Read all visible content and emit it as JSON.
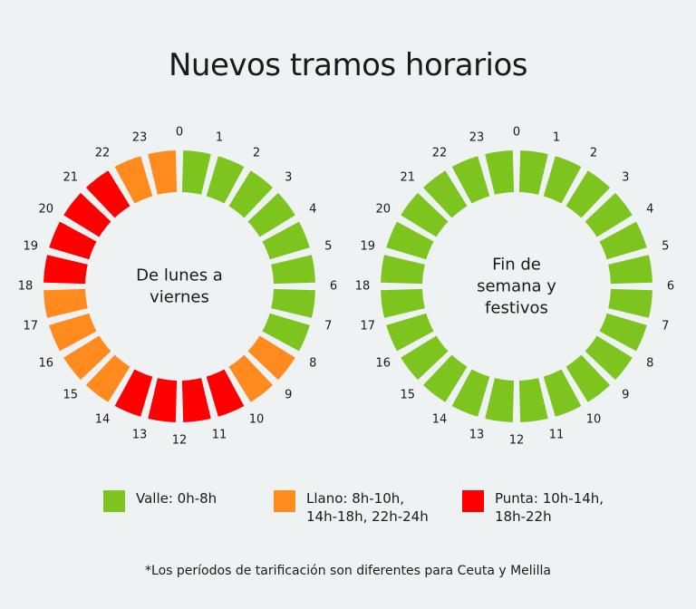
{
  "title": "Nuevos tramos horarios",
  "colors": {
    "valle": "#7dc41e",
    "llano": "#ff8a1e",
    "punta": "#ff0000"
  },
  "wheels": [
    {
      "label_lines": [
        "De lunes a",
        "viernes"
      ],
      "hours": [
        "valle",
        "valle",
        "valle",
        "valle",
        "valle",
        "valle",
        "valle",
        "valle",
        "llano",
        "llano",
        "punta",
        "punta",
        "punta",
        "punta",
        "llano",
        "llano",
        "llano",
        "llano",
        "punta",
        "punta",
        "punta",
        "punta",
        "llano",
        "llano"
      ]
    },
    {
      "label_lines": [
        "Fin de",
        "semana y",
        "festivos"
      ],
      "hours": [
        "valle",
        "valle",
        "valle",
        "valle",
        "valle",
        "valle",
        "valle",
        "valle",
        "valle",
        "valle",
        "valle",
        "valle",
        "valle",
        "valle",
        "valle",
        "valle",
        "valle",
        "valle",
        "valle",
        "valle",
        "valle",
        "valle",
        "valle",
        "valle"
      ]
    }
  ],
  "legend": [
    {
      "key": "valle",
      "label": "Valle: 0h-8h"
    },
    {
      "key": "llano",
      "label": "Llano: 8h-10h,\n14h-18h, 22h-24h"
    },
    {
      "key": "punta",
      "label": "Punta: 10h-14h,\n18h-22h"
    }
  ],
  "footnote": "*Los períodos de tarificación son diferentes para Ceuta y Melilla"
}
